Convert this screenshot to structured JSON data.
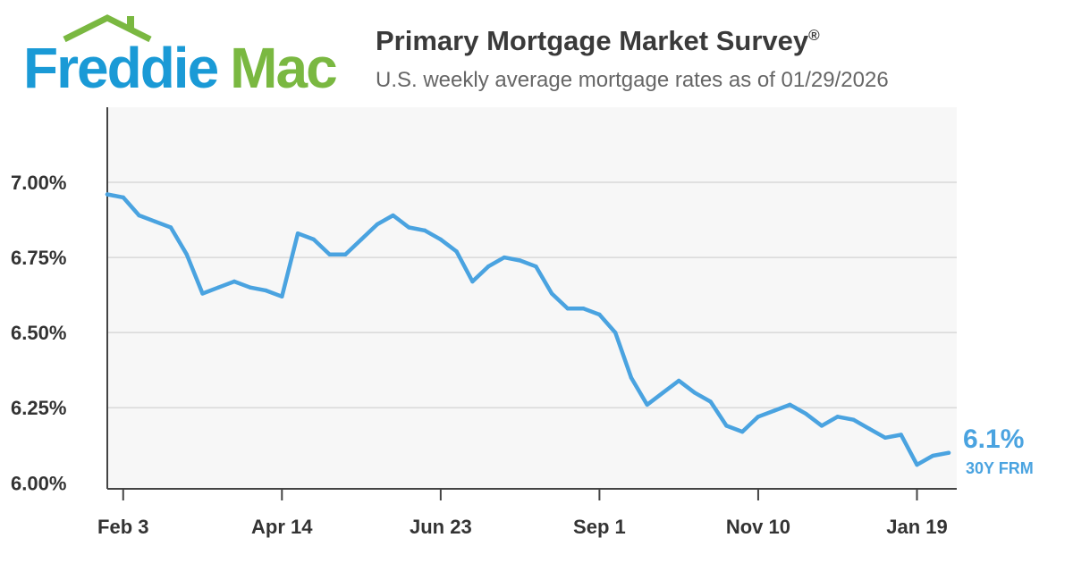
{
  "brand": {
    "logo_part1": "Freddie",
    "logo_part2": "Mac",
    "colors": {
      "blue": "#1a9ad6",
      "green": "#7ab841"
    }
  },
  "header": {
    "title": "Primary Mortgage Market Survey",
    "title_mark": "®",
    "subtitle": "U.S. weekly average mortgage rates as of 01/29/2026"
  },
  "chart_data": {
    "type": "line",
    "title": "Primary Mortgage Market Survey®",
    "subtitle": "U.S. weekly average mortgage rates as of 01/29/2026",
    "xlabel": "",
    "ylabel": "",
    "ylim": [
      5.98,
      7.25
    ],
    "grid": true,
    "legend": "end-of-line label",
    "x_tick_labels": [
      "Feb 3",
      "Apr 14",
      "Jun 23",
      "Sep 1",
      "Nov 10",
      "Jan 19"
    ],
    "x_tick_indices": [
      1,
      11,
      21,
      31,
      41,
      51
    ],
    "y_ticks": [
      {
        "value": 6.0,
        "label": "6.00%"
      },
      {
        "value": 6.25,
        "label": "6.25%"
      },
      {
        "value": 6.5,
        "label": "6.50%"
      },
      {
        "value": 6.75,
        "label": "6.75%"
      },
      {
        "value": 7.0,
        "label": "7.00%"
      }
    ],
    "series": [
      {
        "name": "30Y FRM",
        "color": "#4aa3e0",
        "end_value_label": "6.1%",
        "end_label": "30Y FRM",
        "values": [
          6.96,
          6.95,
          6.89,
          6.87,
          6.85,
          6.76,
          6.63,
          6.65,
          6.67,
          6.65,
          6.64,
          6.62,
          6.83,
          6.81,
          6.76,
          6.76,
          6.81,
          6.86,
          6.89,
          6.85,
          6.84,
          6.81,
          6.77,
          6.67,
          6.72,
          6.75,
          6.74,
          6.72,
          6.63,
          6.58,
          6.58,
          6.56,
          6.5,
          6.35,
          6.26,
          6.3,
          6.34,
          6.3,
          6.27,
          6.19,
          6.17,
          6.22,
          6.24,
          6.26,
          6.23,
          6.19,
          6.22,
          6.21,
          6.18,
          6.15,
          6.16,
          6.06,
          6.09,
          6.1
        ]
      }
    ]
  }
}
